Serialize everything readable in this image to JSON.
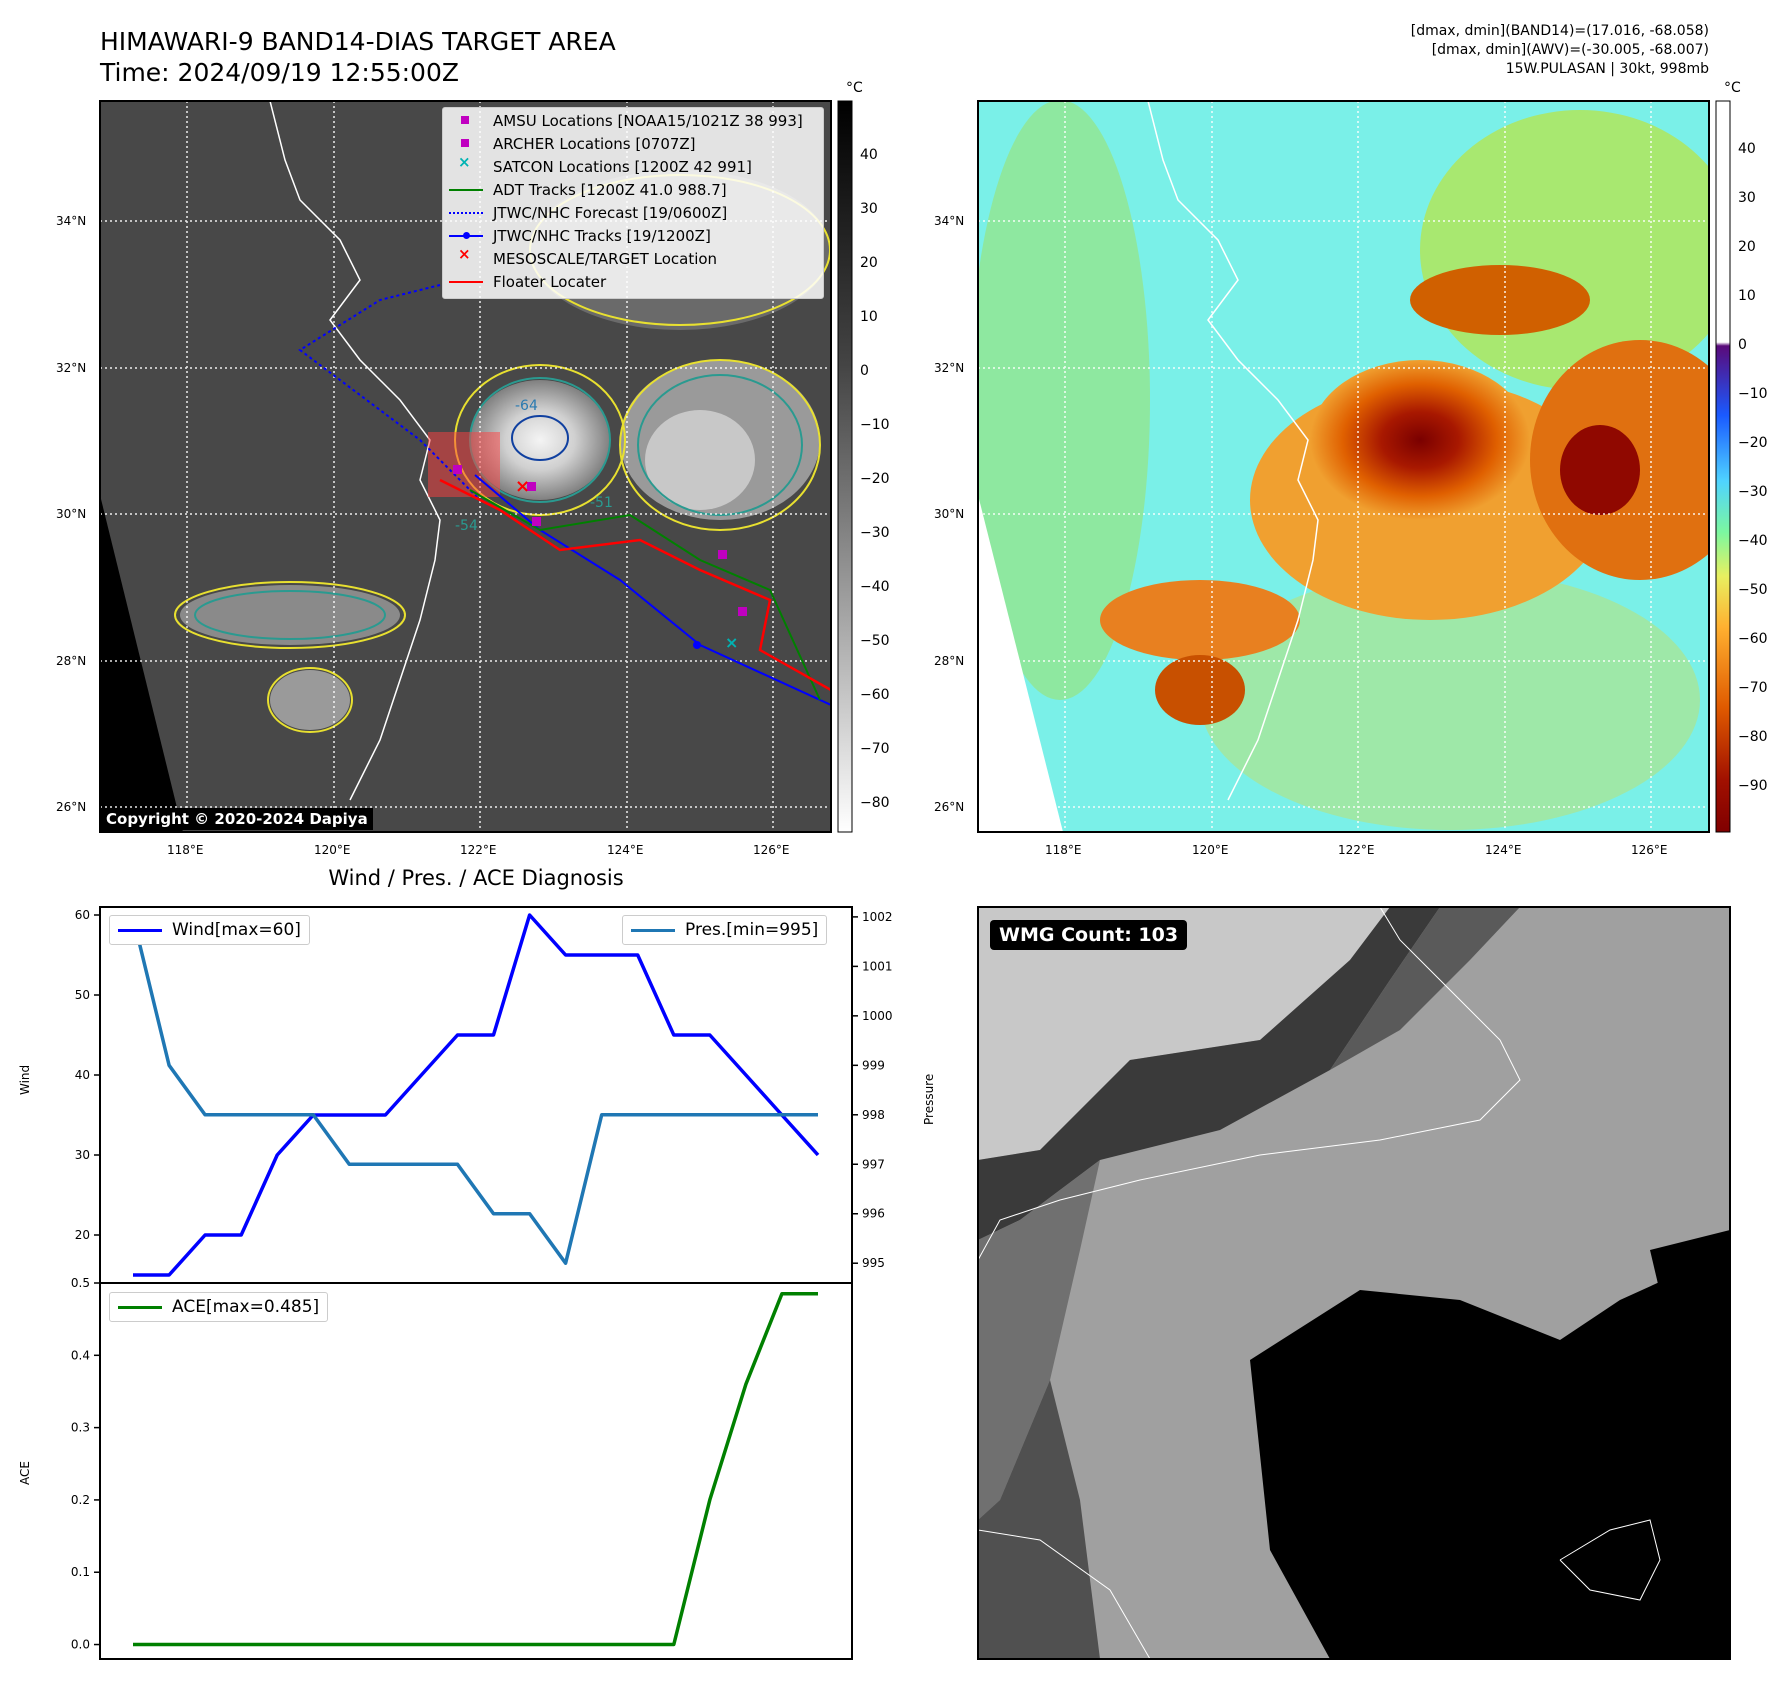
{
  "header": {
    "title_line1": "HIMAWARI-9 BAND14-DIAS TARGET AREA",
    "title_line2": "Time: 2024/09/19 12:55:00Z",
    "right_line1": "[dmax, dmin](BAND14)=(17.016, -68.058)",
    "right_line2": "[dmax, dmin](AWV)=(-30.005, -68.007)",
    "right_line3": "15W.PULASAN | 30kt, 998mb"
  },
  "map_axes": {
    "lat_labels": [
      "34°N",
      "32°N",
      "30°N",
      "28°N",
      "26°N"
    ],
    "lon_labels": [
      "118°E",
      "120°E",
      "122°E",
      "124°E",
      "126°E"
    ],
    "unit": "°C"
  },
  "colorbar_left": {
    "ticks": [
      "40",
      "30",
      "20",
      "10",
      "0",
      "−10",
      "−20",
      "−30",
      "−40",
      "−50",
      "−60",
      "−70",
      "−80"
    ]
  },
  "colorbar_right": {
    "ticks": [
      "40",
      "30",
      "20",
      "10",
      "0",
      "−10",
      "−20",
      "−30",
      "−40",
      "−50",
      "−60",
      "−70",
      "−80",
      "−90"
    ]
  },
  "legend": {
    "items": [
      "AMSU Locations [NOAA15/1021Z 38 993]",
      "ARCHER Locations [0707Z]",
      "SATCON Locations [1200Z 42 991]",
      "ADT Tracks [1200Z 41.0 988.7]",
      "JTWC/NHC Forecast [19/0600Z]",
      "JTWC/NHC Tracks [19/1200Z]",
      "MESOSCALE/TARGET Location",
      "Floater Locater"
    ]
  },
  "map_labels": {
    "copyright": "Copyright © 2020-2024 Dapiya",
    "contour_a": "-64",
    "contour_b": "-54",
    "contour_c": "-51"
  },
  "wmg": {
    "label": "WMG Count: 103"
  },
  "colors": {
    "wind": "#0000ff",
    "pressure": "#1f77b4",
    "ace": "#008000",
    "track": "#0000ff",
    "adt": "#008000",
    "floater": "#ff0000",
    "amsu": "#c000c0",
    "satcon": "#00b3b3"
  },
  "chart_data": [
    {
      "type": "line",
      "title": "Wind / Pres. / ACE Diagnosis",
      "xlabel": "",
      "ylabel": "Wind",
      "ylabel2": "Pressure",
      "ylim": [
        14,
        61
      ],
      "ylim2": [
        994.6,
        1002.2
      ],
      "yticks": [
        20,
        30,
        40,
        50,
        60
      ],
      "yticks2": [
        995,
        996,
        997,
        998,
        999,
        1000,
        1001,
        1002
      ],
      "x": [
        0,
        1,
        2,
        3,
        4,
        5,
        6,
        7,
        8,
        9,
        10,
        11,
        12,
        13,
        14,
        15,
        16,
        17,
        18,
        19
      ],
      "series": [
        {
          "name": "Wind[max=60]",
          "values": [
            15,
            15,
            20,
            20,
            30,
            35,
            35,
            35,
            40,
            45,
            45,
            60,
            55,
            55,
            55,
            45,
            45,
            40,
            35,
            30
          ]
        },
        {
          "name": "Pres.[min=995]",
          "values": [
            1002,
            999,
            998,
            998,
            998,
            998,
            997,
            997,
            997,
            997,
            996,
            996,
            995,
            998,
            998,
            998,
            998,
            998,
            998,
            998
          ]
        }
      ]
    },
    {
      "type": "line",
      "xlabel": "",
      "ylabel": "ACE",
      "ylim": [
        -0.02,
        0.5
      ],
      "yticks": [
        "0.0",
        "0.1",
        "0.2",
        "0.3",
        "0.4",
        "0.5"
      ],
      "x": [
        0,
        1,
        2,
        3,
        4,
        5,
        6,
        7,
        8,
        9,
        10,
        11,
        12,
        13,
        14,
        15,
        16,
        17,
        18,
        19
      ],
      "series": [
        {
          "name": "ACE[max=0.485]",
          "values": [
            0,
            0,
            0,
            0,
            0,
            0,
            0,
            0,
            0,
            0,
            0,
            0,
            0,
            0,
            0,
            0,
            0.2,
            0.36,
            0.485,
            0.485
          ]
        }
      ]
    }
  ]
}
